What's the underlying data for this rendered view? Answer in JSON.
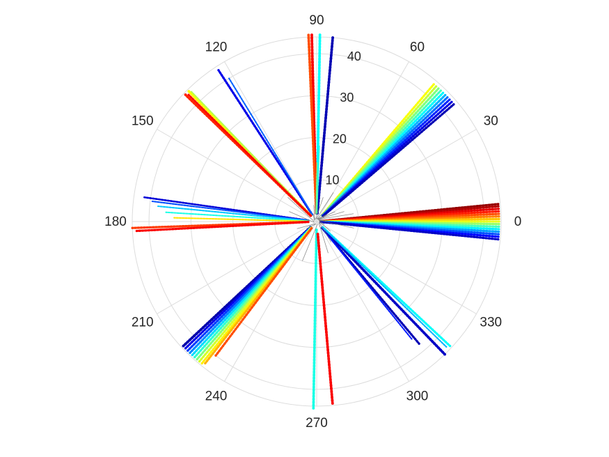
{
  "chart_data": {
    "type": "scatter",
    "subtype": "polar",
    "title": "",
    "xlabel": "",
    "ylabel": "",
    "theta_unit": "degrees",
    "theta_ticks": [
      "0",
      "30",
      "60",
      "90",
      "120",
      "150",
      "180",
      "210",
      "240",
      "270",
      "300",
      "330"
    ],
    "r_ticks": [
      "10",
      "20",
      "30",
      "40"
    ],
    "rlim": [
      0,
      44
    ],
    "grid": true,
    "colormap": "jet",
    "colormap_stops": [
      "#00008f",
      "#0000ff",
      "#0080ff",
      "#00ffff",
      "#80ff80",
      "#ffff00",
      "#ff8000",
      "#ff0000",
      "#800000"
    ],
    "center_trace_color": "#707070",
    "series": [
      {
        "theta": 91.5,
        "r_start": 2,
        "r_end": 44.5,
        "color_level": 0.88,
        "width": 3.5
      },
      {
        "theta": 92.5,
        "r_start": 2,
        "r_end": 44.5,
        "color_level": 0.8,
        "width": 3.5
      },
      {
        "theta": 89.0,
        "r_start": 2,
        "r_end": 44.5,
        "color_level": 0.38,
        "width": 3.5
      },
      {
        "theta": 85.0,
        "r_start": 2,
        "r_end": 44.0,
        "color_level": 0.04,
        "width": 3.5
      },
      {
        "theta": 88.0,
        "r_start": 2,
        "r_end": 18.0,
        "color_level": 0.4,
        "width": 1.5
      },
      {
        "theta": 89.8,
        "r_start": 2,
        "r_end": 14.0,
        "color_level": 0.5,
        "width": 1.5
      },
      {
        "theta": 49.5,
        "r_start": 2,
        "r_end": 43.0,
        "color_level": 0.62,
        "width": 3.0
      },
      {
        "theta": 48.5,
        "r_start": 2,
        "r_end": 43.0,
        "color_level": 0.57,
        "width": 3.0
      },
      {
        "theta": 47.5,
        "r_start": 2,
        "r_end": 43.0,
        "color_level": 0.5,
        "width": 3.0
      },
      {
        "theta": 46.5,
        "r_start": 2,
        "r_end": 43.0,
        "color_level": 0.44,
        "width": 3.0
      },
      {
        "theta": 45.5,
        "r_start": 2,
        "r_end": 43.0,
        "color_level": 0.37,
        "width": 3.0
      },
      {
        "theta": 44.5,
        "r_start": 2,
        "r_end": 43.0,
        "color_level": 0.3,
        "width": 3.0
      },
      {
        "theta": 43.5,
        "r_start": 2,
        "r_end": 43.0,
        "color_level": 0.23,
        "width": 3.0
      },
      {
        "theta": 42.5,
        "r_start": 2,
        "r_end": 43.0,
        "color_level": 0.16,
        "width": 3.0
      },
      {
        "theta": 41.5,
        "r_start": 2,
        "r_end": 43.0,
        "color_level": 0.09,
        "width": 3.0
      },
      {
        "theta": 40.5,
        "r_start": 2,
        "r_end": 43.0,
        "color_level": 0.04,
        "width": 3.0
      },
      {
        "theta": 5.5,
        "r_start": 1,
        "r_end": 43.5,
        "color_level": 0.98,
        "width": 3.0
      },
      {
        "theta": 4.8,
        "r_start": 1,
        "r_end": 43.5,
        "color_level": 0.95,
        "width": 3.0
      },
      {
        "theta": 4.0,
        "r_start": 1,
        "r_end": 43.5,
        "color_level": 0.9,
        "width": 3.0
      },
      {
        "theta": 3.2,
        "r_start": 1,
        "r_end": 43.5,
        "color_level": 0.85,
        "width": 3.0
      },
      {
        "theta": 2.4,
        "r_start": 1,
        "r_end": 43.5,
        "color_level": 0.8,
        "width": 3.0
      },
      {
        "theta": 1.6,
        "r_start": 1,
        "r_end": 43.5,
        "color_level": 0.75,
        "width": 3.0
      },
      {
        "theta": 0.8,
        "r_start": 1,
        "r_end": 43.5,
        "color_level": 0.68,
        "width": 3.0
      },
      {
        "theta": 0.0,
        "r_start": 1,
        "r_end": 43.5,
        "color_level": 0.6,
        "width": 3.0
      },
      {
        "theta": -0.8,
        "r_start": 1,
        "r_end": 43.5,
        "color_level": 0.52,
        "width": 3.0
      },
      {
        "theta": -1.6,
        "r_start": 1,
        "r_end": 43.5,
        "color_level": 0.44,
        "width": 3.0
      },
      {
        "theta": -2.4,
        "r_start": 1,
        "r_end": 43.5,
        "color_level": 0.36,
        "width": 3.0
      },
      {
        "theta": -3.2,
        "r_start": 1,
        "r_end": 43.5,
        "color_level": 0.28,
        "width": 3.0
      },
      {
        "theta": -4.0,
        "r_start": 1,
        "r_end": 43.5,
        "color_level": 0.2,
        "width": 3.0
      },
      {
        "theta": -4.8,
        "r_start": 1,
        "r_end": 43.5,
        "color_level": 0.13,
        "width": 3.0
      },
      {
        "theta": -5.6,
        "r_start": 1,
        "r_end": 43.5,
        "color_level": 0.06,
        "width": 3.0
      },
      {
        "theta": 123.0,
        "r_start": 2,
        "r_end": 43.0,
        "color_level": 0.1,
        "width": 3.0
      },
      {
        "theta": 121.5,
        "r_start": 2,
        "r_end": 40.0,
        "color_level": 0.22,
        "width": 2.0
      },
      {
        "theta": 134.5,
        "r_start": 2,
        "r_end": 43.5,
        "color_level": 0.62,
        "width": 3.5
      },
      {
        "theta": 134.0,
        "r_start": 2,
        "r_end": 43.0,
        "color_level": 0.55,
        "width": 2.0
      },
      {
        "theta": 136.0,
        "r_start": 2,
        "r_end": 43.5,
        "color_level": 0.84,
        "width": 3.5
      },
      {
        "theta": 135.3,
        "r_start": 2,
        "r_end": 43.0,
        "color_level": 0.88,
        "width": 2.5
      },
      {
        "theta": 172.0,
        "r_start": 2,
        "r_end": 41.5,
        "color_level": 0.08,
        "width": 2.5
      },
      {
        "theta": 173.0,
        "r_start": 2,
        "r_end": 39.5,
        "color_level": 0.2,
        "width": 2.0
      },
      {
        "theta": 174.5,
        "r_start": 2,
        "r_end": 38.0,
        "color_level": 0.32,
        "width": 2.0
      },
      {
        "theta": 176.5,
        "r_start": 2,
        "r_end": 36.0,
        "color_level": 0.4,
        "width": 2.0
      },
      {
        "theta": 178.5,
        "r_start": 2,
        "r_end": 34.0,
        "color_level": 0.65,
        "width": 2.0
      },
      {
        "theta": 182.0,
        "r_start": 2,
        "r_end": 44.0,
        "color_level": 0.82,
        "width": 3.0
      },
      {
        "theta": 183.0,
        "r_start": 2,
        "r_end": 43.0,
        "color_level": 0.88,
        "width": 3.0
      },
      {
        "theta": 223.0,
        "r_start": 2,
        "r_end": 43.5,
        "color_level": 0.03,
        "width": 3.5
      },
      {
        "theta": 224.0,
        "r_start": 2,
        "r_end": 43.5,
        "color_level": 0.1,
        "width": 3.0
      },
      {
        "theta": 225.0,
        "r_start": 2,
        "r_end": 43.5,
        "color_level": 0.18,
        "width": 3.0
      },
      {
        "theta": 226.0,
        "r_start": 2,
        "r_end": 43.5,
        "color_level": 0.26,
        "width": 3.0
      },
      {
        "theta": 227.0,
        "r_start": 2,
        "r_end": 43.5,
        "color_level": 0.34,
        "width": 3.0
      },
      {
        "theta": 228.0,
        "r_start": 2,
        "r_end": 43.5,
        "color_level": 0.42,
        "width": 3.0
      },
      {
        "theta": 229.0,
        "r_start": 2,
        "r_end": 43.5,
        "color_level": 0.5,
        "width": 3.0
      },
      {
        "theta": 230.0,
        "r_start": 2,
        "r_end": 43.5,
        "color_level": 0.58,
        "width": 3.0
      },
      {
        "theta": 231.0,
        "r_start": 2,
        "r_end": 43.5,
        "color_level": 0.64,
        "width": 3.0
      },
      {
        "theta": 231.8,
        "r_start": 2,
        "r_end": 43.0,
        "color_level": 0.7,
        "width": 3.0
      },
      {
        "theta": 233.0,
        "r_start": 2,
        "r_end": 40.0,
        "color_level": 0.8,
        "width": 3.0
      },
      {
        "theta": 269.0,
        "r_start": 2,
        "r_end": 44.5,
        "color_level": 0.4,
        "width": 3.5
      },
      {
        "theta": 275.0,
        "r_start": 3,
        "r_end": 43.5,
        "color_level": 0.88,
        "width": 3.5
      },
      {
        "theta": 310.0,
        "r_start": 2,
        "r_end": 38.0,
        "color_level": 0.04,
        "width": 3.0
      },
      {
        "theta": 309.0,
        "r_start": 2,
        "r_end": 36.0,
        "color_level": 0.15,
        "width": 2.0
      },
      {
        "theta": 314.0,
        "r_start": 2,
        "r_end": 44.0,
        "color_level": 0.06,
        "width": 3.5
      },
      {
        "theta": 317.0,
        "r_start": 2,
        "r_end": 43.5,
        "color_level": 0.38,
        "width": 3.0
      },
      {
        "theta": 316.0,
        "r_start": 2,
        "r_end": 43.0,
        "color_level": 0.3,
        "width": 2.0
      }
    ]
  }
}
